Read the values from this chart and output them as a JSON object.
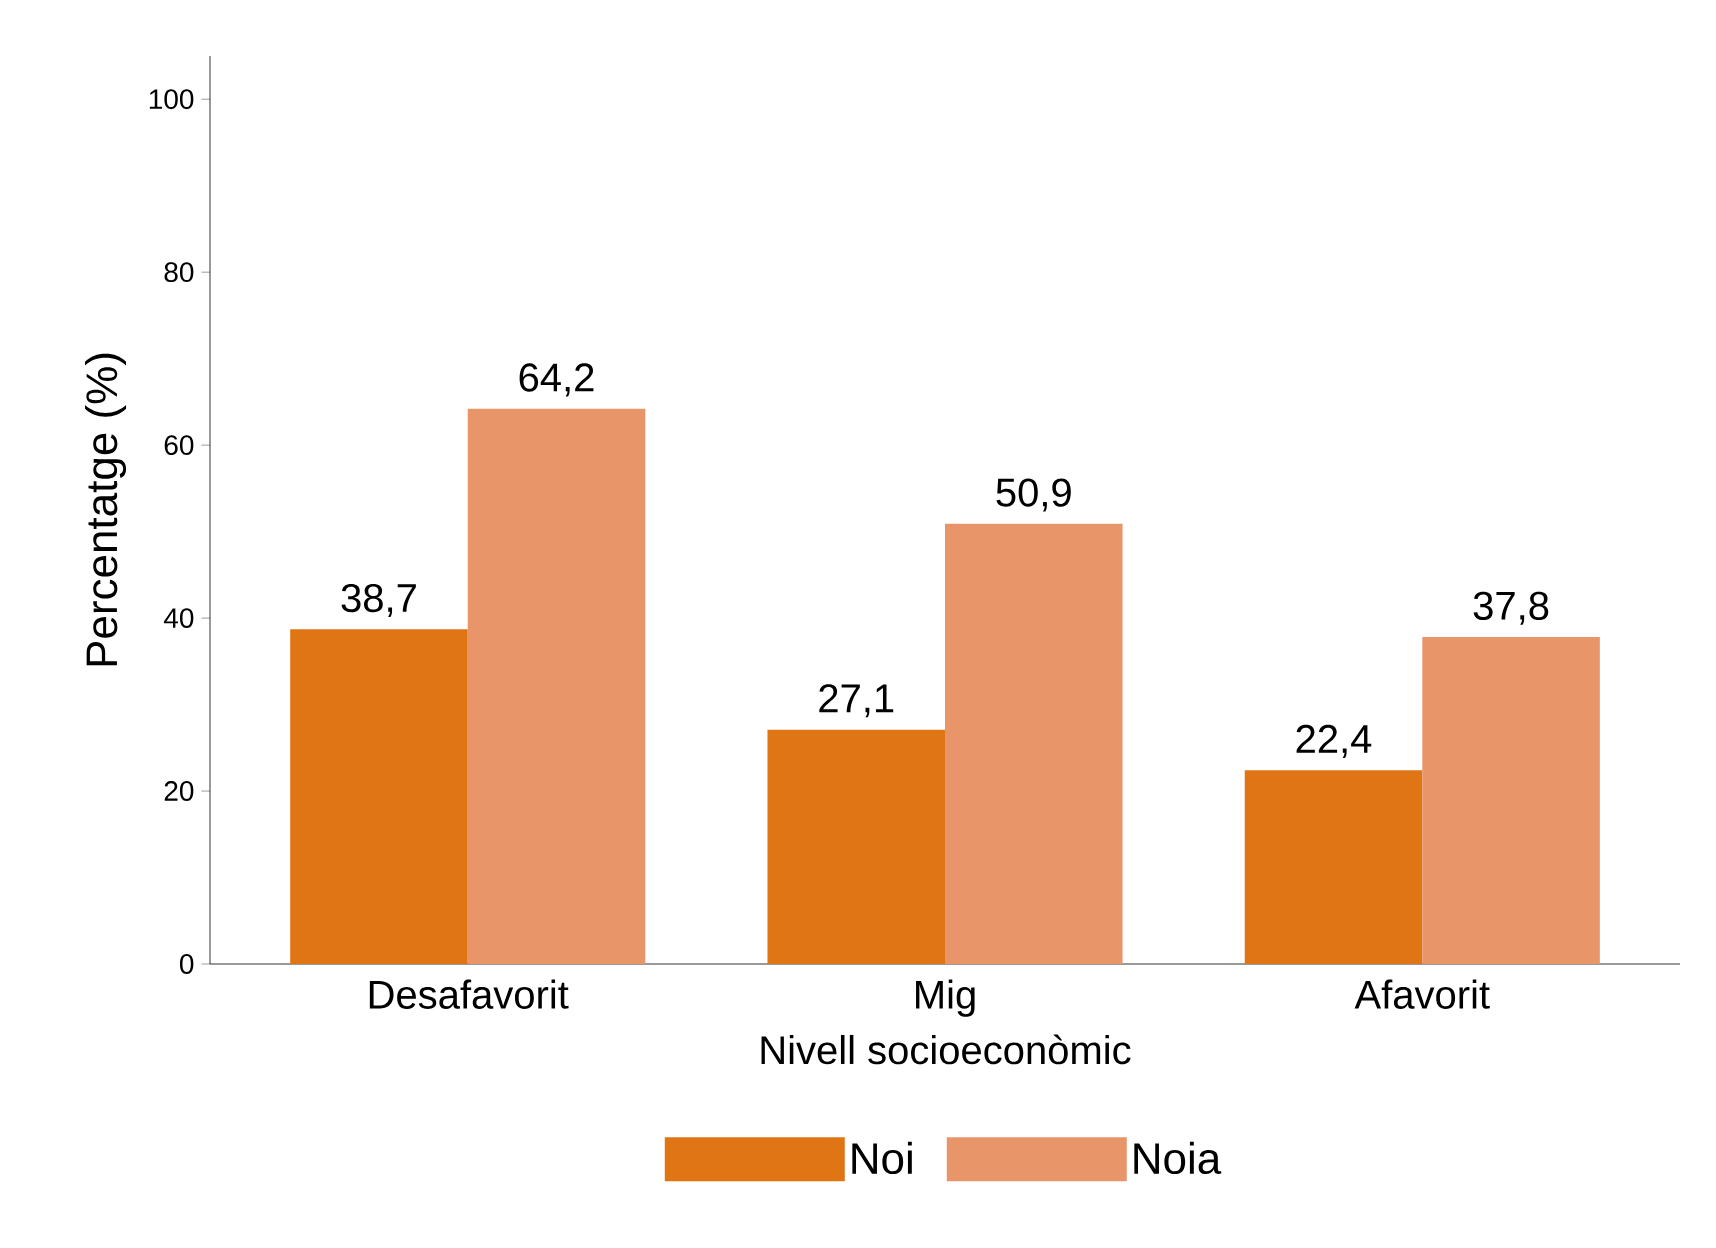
{
  "chart_data": {
    "type": "bar",
    "xlabel": "Nivell socioeconòmic",
    "ylabel": "Percentatge (%)",
    "categories": [
      "Desafavorit",
      "Mig",
      "Afavorit"
    ],
    "series": [
      {
        "name": "Noi",
        "color": "#e07516",
        "values": [
          38.7,
          27.1,
          22.4
        ],
        "value_labels": [
          "38,7",
          "27,1",
          "22,4"
        ]
      },
      {
        "name": "Noia",
        "color": "#e8956a",
        "values": [
          64.2,
          50.9,
          37.8
        ],
        "value_labels": [
          "64,2",
          "50,9",
          "37,8"
        ]
      }
    ],
    "ylim": [
      0,
      105
    ],
    "yticks": [
      0,
      20,
      40,
      60,
      80,
      100
    ],
    "grid": false,
    "legend": "bottom"
  }
}
